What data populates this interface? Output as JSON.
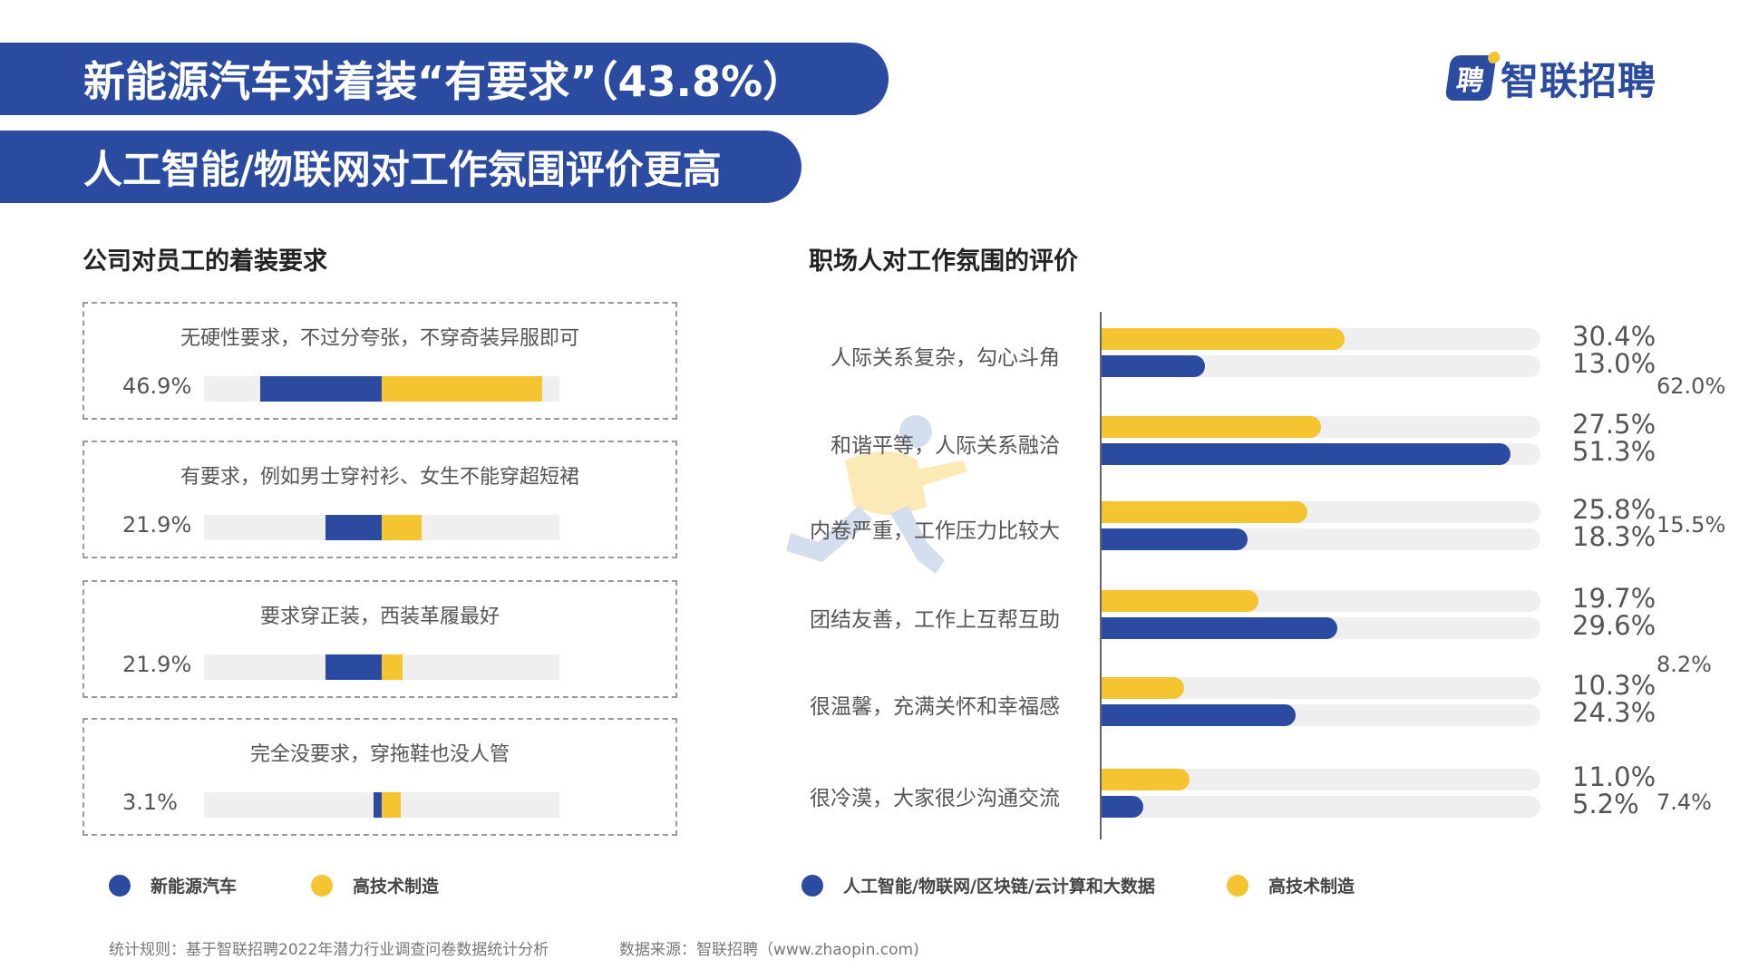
{
  "header": {
    "title1": "新能源汽车对着装“有要求”（43.8%）",
    "title2": "人工智能/物联网对工作氛围评价更高"
  },
  "logo": {
    "mark": "聘",
    "text": "智联招聘"
  },
  "left": {
    "title": "公司对员工的着装要求",
    "legend": [
      {
        "label": "新能源汽车",
        "color": "#2b4ba0"
      },
      {
        "label": "高技术制造",
        "color": "#f4c531"
      }
    ]
  },
  "right": {
    "title": "职场人对工作氛围的评价",
    "legend": [
      {
        "label": "人工智能/物联网/区块链/云计算和大数据",
        "color": "#2b4ba0"
      },
      {
        "label": "高技术制造",
        "color": "#f4c531"
      }
    ]
  },
  "chart_data": [
    {
      "type": "bar",
      "title": "公司对员工的着装要求",
      "orientation": "horizontal-diverging",
      "categories": [
        "无硬性要求，不过分夸张，不穿奇装异服即可",
        "有要求，例如男士穿衬衫、女生不能穿超短裙",
        "要求穿正装，西装革履最好",
        "完全没要求，穿拖鞋也没人管"
      ],
      "series": [
        {
          "name": "新能源汽车",
          "values": [
            46.9,
            21.9,
            21.9,
            3.1
          ],
          "labels": [
            "46.9%",
            "21.9%",
            "21.9%",
            "3.1%"
          ]
        },
        {
          "name": "高技术制造",
          "values": [
            62.0,
            15.5,
            8.2,
            7.4
          ],
          "labels": [
            "62.0%",
            "15.5%",
            "8.2%",
            "7.4%"
          ]
        }
      ],
      "unit": "%"
    },
    {
      "type": "bar",
      "title": "职场人对工作氛围的评价",
      "orientation": "horizontal",
      "categories": [
        "人际关系复杂，勾心斗角",
        "和谐平等，人际关系融洽",
        "内卷严重，工作压力比较大",
        "团结友善，工作上互帮互助",
        "很温馨，充满关怀和幸福感",
        "很冷漠，大家很少沟通交流"
      ],
      "series": [
        {
          "name": "高技术制造",
          "values": [
            30.4,
            27.5,
            25.8,
            19.7,
            10.3,
            11.0
          ],
          "labels": [
            "30.4%",
            "27.5%",
            "25.8%",
            "19.7%",
            "10.3%",
            "11.0%"
          ]
        },
        {
          "name": "人工智能/物联网/区块链/云计算和大数据",
          "values": [
            13.0,
            51.3,
            18.3,
            29.6,
            24.3,
            5.2
          ],
          "labels": [
            "13.0%",
            "51.3%",
            "18.3%",
            "29.6%",
            "24.3%",
            "5.2%"
          ]
        }
      ],
      "xlim": [
        0,
        55
      ],
      "unit": "%"
    }
  ],
  "footer": {
    "rule": "统计规则：基于智联招聘2022年潜力行业调查问卷数据统计分析",
    "source": "数据来源：智联招聘（www.zhaopin.com)"
  }
}
